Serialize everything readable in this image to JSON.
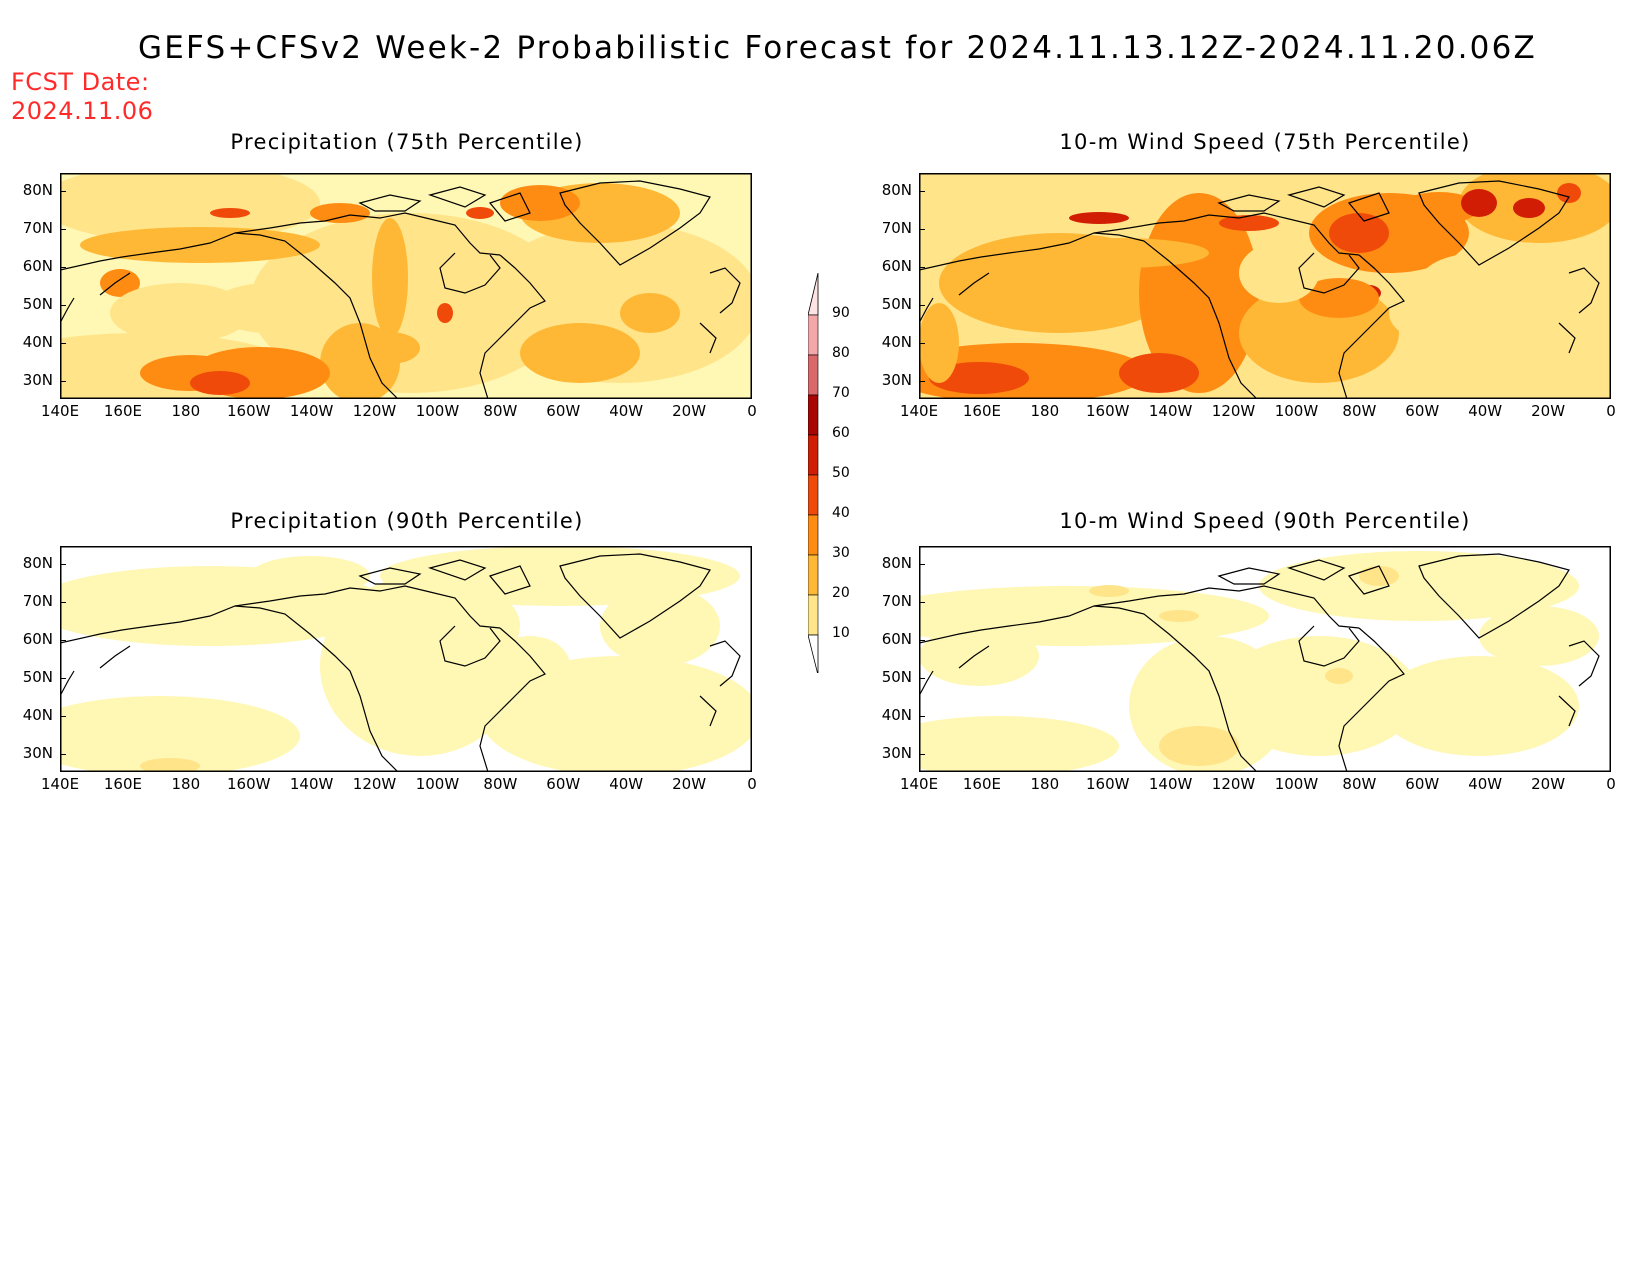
{
  "title": "GEFS+CFSv2 Week-2 Probabilistic Forecast for 2024.11.13.12Z-2024.11.20.06Z",
  "fcst_label": "FCST Date:",
  "fcst_date": "2024.11.06",
  "lat_ticks": [
    "80N",
    "70N",
    "60N",
    "50N",
    "40N",
    "30N"
  ],
  "lon_ticks": [
    "140E",
    "160E",
    "180",
    "160W",
    "140W",
    "120W",
    "100W",
    "80W",
    "60W",
    "40W",
    "20W",
    "0"
  ],
  "panels": [
    {
      "title": "Precipitation (75th Percentile)"
    },
    {
      "title": "10-m Wind Speed (75th Percentile)"
    },
    {
      "title": "Precipitation (90th Percentile)"
    },
    {
      "title": "10-m Wind Speed (90th Percentile)"
    }
  ],
  "colorbar": {
    "labels": [
      "90",
      "80",
      "70",
      "60",
      "50",
      "40",
      "30",
      "20",
      "10"
    ],
    "levels": [
      10,
      20,
      30,
      40,
      50,
      60,
      70,
      80,
      90
    ],
    "colors": [
      "#fff7b4",
      "#ffe48a",
      "#ffb836",
      "#ff8c12",
      "#f04a0a",
      "#d21d05",
      "#a80505",
      "#d9686a",
      "#f3a7a9",
      "#fde3e4"
    ]
  }
}
